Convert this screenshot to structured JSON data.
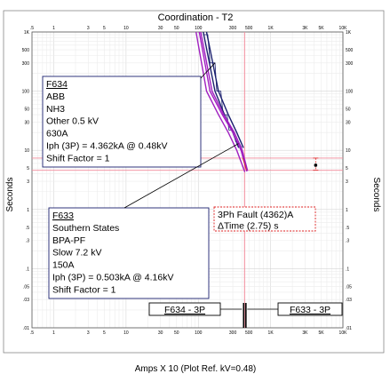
{
  "chart_data": {
    "type": "line",
    "title": "Coordination - T2",
    "xlabel": "Amps  X  10 (Plot Ref. kV=0.48)",
    "ylabel": "Seconds",
    "ylabel_right": "Seconds",
    "x_scale": "log",
    "y_scale": "log",
    "xlim": [
      0.5,
      10000
    ],
    "ylim": [
      0.01,
      1000
    ],
    "x_tick_labels": [
      {
        "v": 0.5,
        "label": ".5"
      },
      {
        "v": 1,
        "label": "1"
      },
      {
        "v": 3,
        "label": "3"
      },
      {
        "v": 5,
        "label": "5"
      },
      {
        "v": 10,
        "label": "10"
      },
      {
        "v": 30,
        "label": "30"
      },
      {
        "v": 50,
        "label": "50"
      },
      {
        "v": 100,
        "label": "100"
      },
      {
        "v": 300,
        "label": "300"
      },
      {
        "v": 500,
        "label": "500"
      },
      {
        "v": 1000,
        "label": "1K"
      },
      {
        "v": 3000,
        "label": "3K"
      },
      {
        "v": 5000,
        "label": "5K"
      },
      {
        "v": 10000,
        "label": "10K"
      }
    ],
    "y_tick_labels": [
      {
        "v": 1000,
        "label": "1K"
      },
      {
        "v": 500,
        "label": "500"
      },
      {
        "v": 300,
        "label": "300"
      },
      {
        "v": 100,
        "label": "100"
      },
      {
        "v": 50,
        "label": "50"
      },
      {
        "v": 30,
        "label": "30"
      },
      {
        "v": 10,
        "label": "10"
      },
      {
        "v": 5,
        "label": "5"
      },
      {
        "v": 3,
        "label": "3"
      },
      {
        "v": 1,
        "label": "1"
      },
      {
        "v": 0.5,
        "label": ".5"
      },
      {
        "v": 0.3,
        "label": ".3"
      },
      {
        "v": 0.1,
        "label": ".1"
      },
      {
        "v": 0.05,
        "label": ".05"
      },
      {
        "v": 0.03,
        "label": ".03"
      },
      {
        "v": 0.01,
        "label": ".01"
      }
    ],
    "grid": true,
    "series": [
      {
        "name": "F634",
        "color": "#1a1f6e",
        "bands": [
          [
            [
              117,
              1000
            ],
            [
              170,
              100
            ],
            [
              230,
              40
            ],
            [
              300,
              20
            ],
            [
              362,
              11
            ]
          ],
          [
            [
              130,
              1000
            ],
            [
              190,
              100
            ],
            [
              260,
              40
            ],
            [
              340,
              20
            ],
            [
              420,
              11
            ]
          ]
        ],
        "fill_points": [
          [
            120,
            900
          ],
          [
            135,
            900
          ],
          [
            145,
            300
          ],
          [
            170,
            300
          ],
          [
            180,
            100
          ],
          [
            205,
            100
          ],
          [
            220,
            40
          ],
          [
            250,
            40
          ],
          [
            265,
            22
          ],
          [
            300,
            22
          ],
          [
            330,
            14
          ],
          [
            360,
            14
          ],
          [
            400,
            11
          ]
        ]
      },
      {
        "name": "F633",
        "color": "#a020c0",
        "bands": [
          [
            [
              93,
              1000
            ],
            [
              130,
              100
            ],
            [
              190,
              40
            ],
            [
              260,
              20
            ],
            [
              340,
              10
            ],
            [
              440,
              4.3
            ]
          ],
          [
            [
              103,
              1000
            ],
            [
              145,
              100
            ],
            [
              215,
              40
            ],
            [
              300,
              20
            ],
            [
              390,
              10
            ],
            [
              470,
              4.4
            ]
          ],
          [
            [
              108,
              1000
            ],
            [
              155,
              100
            ],
            [
              225,
              40
            ],
            [
              315,
              20
            ],
            [
              405,
              10
            ],
            [
              480,
              4.5
            ]
          ]
        ]
      }
    ],
    "fault_x": 436.2,
    "fault_line_color": "#f28a9a",
    "time_levels": [
      7.4,
      4.6
    ],
    "delta_marker": {
      "x": 4200,
      "y_top": 7.4,
      "y_bottom": 4.6,
      "point_y": 5.6
    },
    "notes": [
      {
        "id": "f634",
        "lines": [
          "F634",
          "ABB",
          "NH3",
          "Other  0.5 kV",
          "630A",
          "Iph (3P) = 4.362kA @ 0.48kV",
          "Shift Factor = 1"
        ],
        "leader_to": [
          170,
          300
        ]
      },
      {
        "id": "f633",
        "lines": [
          "F633",
          "Southern States",
          "BPA-PF",
          "Slow  7.2 kV",
          "150A",
          "Iph (3P) = 0.503kA @ 4.16kV",
          "Shift Factor = 1"
        ],
        "leader_to": [
          360,
          13
        ]
      }
    ],
    "fault_note": [
      "3Ph Fault (4362)A",
      "ΔTime (2.75) s"
    ],
    "bottom_labels": [
      "F634 - 3P",
      "F633 - 3P"
    ]
  }
}
